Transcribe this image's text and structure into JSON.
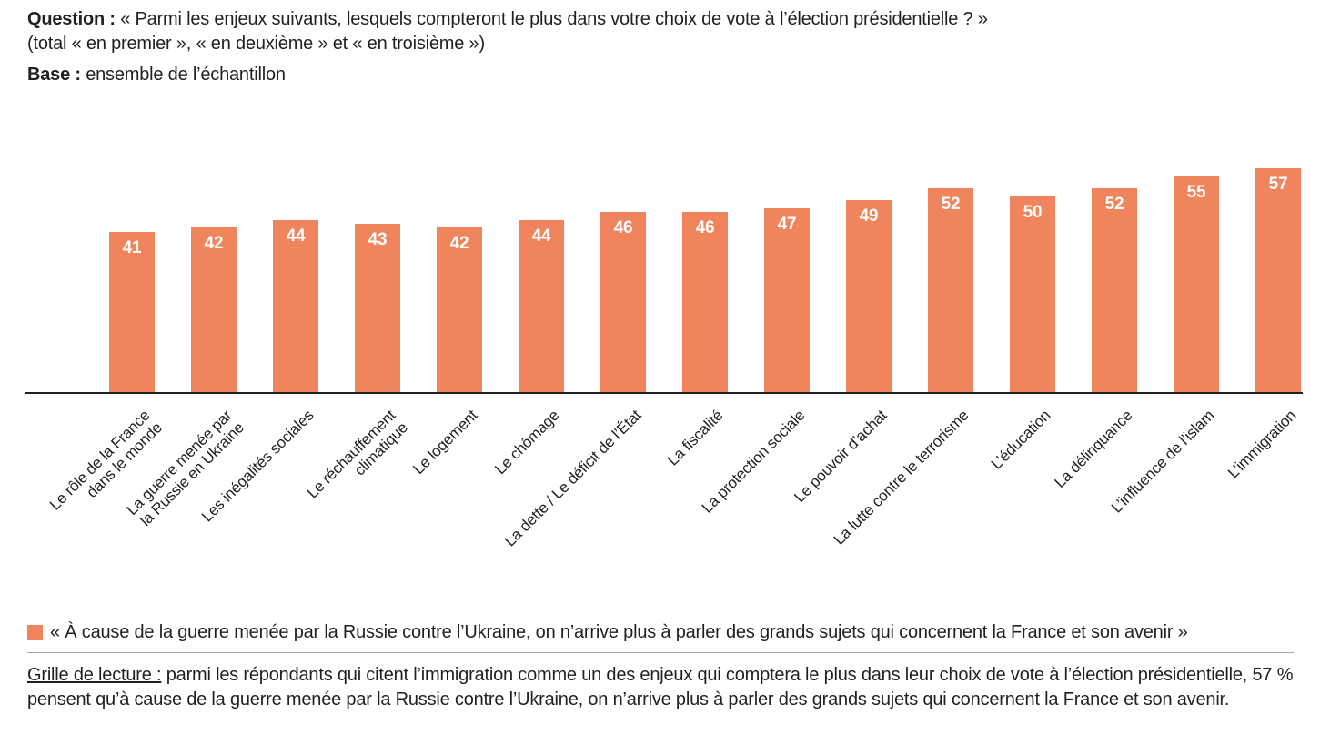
{
  "header": {
    "question_label": "Question :",
    "question_text": "« Parmi les enjeux suivants, lesquels compteront le plus dans votre choix de vote à l’élection présidentielle ? »",
    "question_note": "(total « en premier », « en deuxième » et « en troisième »)",
    "base_label": "Base :",
    "base_text": "ensemble de l’échantillon"
  },
  "chart_data": {
    "type": "bar",
    "title": "",
    "xlabel": "",
    "ylabel": "",
    "unit": "%",
    "ylim": [
      0,
      60
    ],
    "grid": false,
    "value_labels": true,
    "legend_position": "bottom",
    "bar_color": "#F0845C",
    "axis_color": "#231f20",
    "categories": [
      "Le rôle de la France\ndans le monde",
      "La guerre menée par\nla Russie en Ukraine",
      "Les inégalités sociales",
      "Le réchauffement\nclimatique",
      "Le logement",
      "Le chômage",
      "La dette / Le déficit de l’État",
      "La fiscalité",
      "La protection sociale",
      "Le pouvoir d’achat",
      "La lutte contre le terrorisme",
      "L’éducation",
      "La délinquance",
      "L’influence de l’islam",
      "L’immigration"
    ],
    "values": [
      41,
      42,
      44,
      43,
      42,
      44,
      46,
      46,
      47,
      49,
      52,
      50,
      52,
      55,
      57
    ]
  },
  "legend": {
    "swatch_color": "#F0845C",
    "label": "« À cause de la guerre menée par la Russie contre l’Ukraine, on n’arrive plus à parler des grands sujets qui concernent la France et son avenir »"
  },
  "footnote": {
    "lead": "Grille de lecture :",
    "text": "parmi les répondants qui citent l’immigration comme un des enjeux qui comptera le plus dans leur choix de vote à l’élection présidentielle, 57 % pensent qu’à cause de la guerre menée par la Russie contre l’Ukraine, on n’arrive plus à parler des grands sujets qui concernent la France et son avenir."
  }
}
